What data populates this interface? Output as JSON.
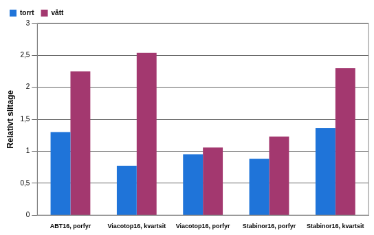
{
  "chart_data": {
    "type": "bar",
    "y_label": "Relativt slitage",
    "categories": [
      "ABT16, porfyr",
      "Viacotop16, kvartsit",
      "Viacotop16, porfyr",
      "Stabinor16, porfyr",
      "Stabinor16, kvartsit"
    ],
    "series": [
      {
        "name": "torrt",
        "color": "#1f74d9",
        "values": [
          1.3,
          0.77,
          0.95,
          0.88,
          1.36
        ]
      },
      {
        "name": "vått",
        "color": "#a3386f",
        "values": [
          2.25,
          2.54,
          1.06,
          1.23,
          2.3
        ]
      }
    ],
    "ylim": [
      0,
      3
    ],
    "yticks": [
      0,
      {
        "value": 0.5,
        "label": "0,5"
      },
      1,
      {
        "value": 1.5,
        "label": "1,5"
      },
      2,
      {
        "value": 2.5,
        "label": "2,5"
      },
      3
    ],
    "grid": true,
    "legend": "upper left"
  }
}
